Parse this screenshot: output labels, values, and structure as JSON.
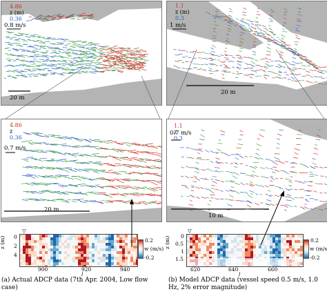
{
  "left": {
    "top_panel": {
      "legend_max": "4.86",
      "legend_var": "z (m)",
      "legend_min": "0.36",
      "speed_scale": "0.8 m/s",
      "length_scale": "20 m"
    },
    "mid_panel": {
      "legend_max": "4.86",
      "legend_var": "z",
      "legend_min": "0.36",
      "speed_scale": "0.7 m/s",
      "length_scale": "20 m"
    },
    "section": {
      "y_label": "z (m)",
      "y_ticks": [
        "0",
        "2",
        "4"
      ],
      "x_label": "l",
      "x_ticks": [
        "900",
        "920",
        "940"
      ],
      "marker": "▽",
      "colorbar_max": "0.2",
      "colorbar_min": "-0.2",
      "colorbar_label": "w (m/s)"
    },
    "caption": "(a) Actual ADCP data (7th Apr. 2004, Low flow case)"
  },
  "right": {
    "top_panel": {
      "legend_max": "1.1",
      "legend_var": "z (m)",
      "legend_min": "0.3",
      "speed_scale": "1 m/s",
      "length_scale": "20 m"
    },
    "mid_panel": {
      "legend_max": "1.1",
      "legend_var": "z",
      "legend_min": "0.3",
      "speed_scale": "0.7 m/s",
      "length_scale": "10 m"
    },
    "section": {
      "y_label": "z (m)",
      "y_ticks": [
        "0",
        "0.5",
        "1",
        "1.5"
      ],
      "x_label": "l",
      "x_ticks": [
        "620",
        "640",
        "660"
      ],
      "marker": "▽",
      "colorbar_max": "0.2",
      "colorbar_min": "-0.2",
      "colorbar_label": "w (m/s)"
    },
    "caption": "(b) Model ADCP data (vessel speed 0.5 m/s, 1.0 Hz, 2% error magnitude)"
  },
  "colors": {
    "land": "#b4b4b4",
    "vector_high": "#d0352b",
    "vector_mid": "#3fa34d",
    "vector_low": "#3a63c8"
  }
}
